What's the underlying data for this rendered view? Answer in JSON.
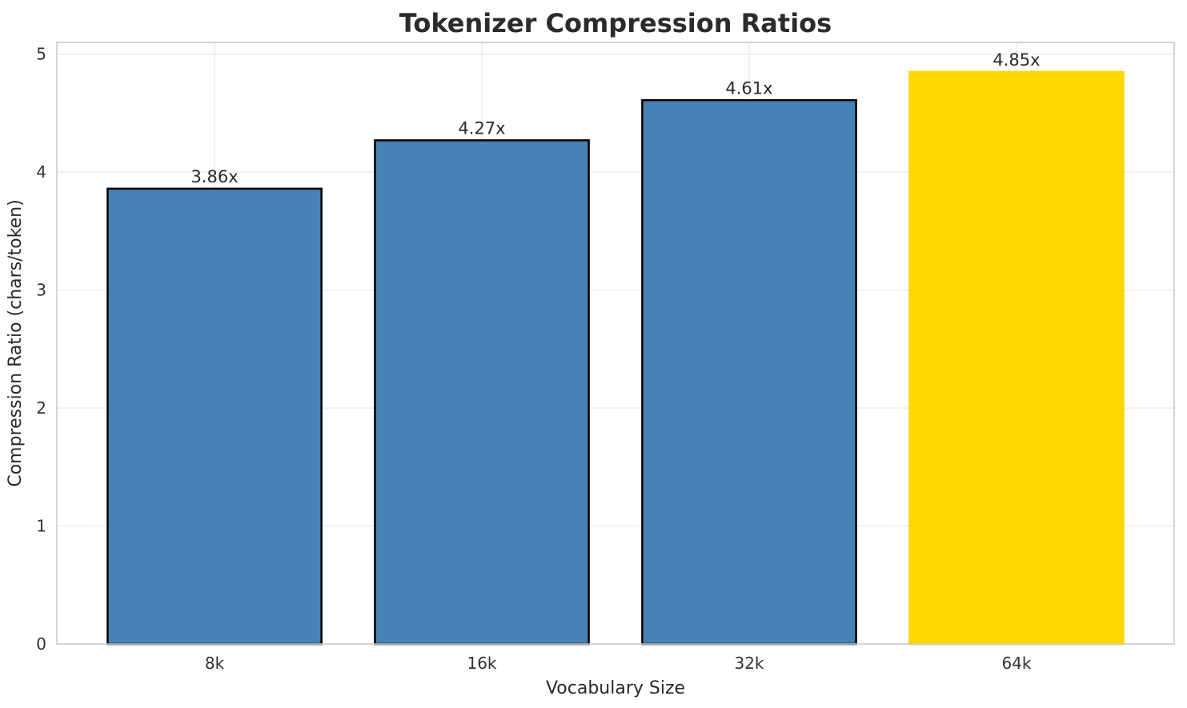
{
  "figure": {
    "title": "Tokenizer Compression Ratios"
  },
  "chart_data": {
    "type": "bar",
    "title": "Tokenizer Compression Ratios",
    "xlabel": "Vocabulary Size",
    "ylabel": "Compression Ratio (chars/token)",
    "categories": [
      "8k",
      "16k",
      "32k",
      "64k"
    ],
    "values": [
      3.86,
      4.27,
      4.61,
      4.85
    ],
    "bar_labels": [
      "3.86x",
      "4.27x",
      "4.61x",
      "4.85x"
    ],
    "bar_colors": [
      "#4682B4",
      "#4682B4",
      "#4682B4",
      "#FFD700"
    ],
    "bar_edge_colors": [
      "#000000",
      "#000000",
      "#000000",
      "#FFD700"
    ],
    "highlight_category": "64k",
    "yticks": [
      0,
      1,
      2,
      3,
      4,
      5
    ],
    "ytick_labels": [
      "0",
      "1",
      "2",
      "3",
      "4",
      "5"
    ],
    "ylim": [
      0,
      5.1
    ],
    "xlim": [
      -0.59,
      3.59
    ],
    "bar_width_units": 0.8,
    "grid": true,
    "grid_axes": "both",
    "legend_position": "none"
  },
  "colors": {
    "bar_blue": "#4682B4",
    "bar_gold": "#FFD700",
    "grid": "#ececec",
    "spine": "#cccccc",
    "tick_text": "#333333",
    "title_text": "#2b2b2b",
    "background": "#ffffff"
  }
}
